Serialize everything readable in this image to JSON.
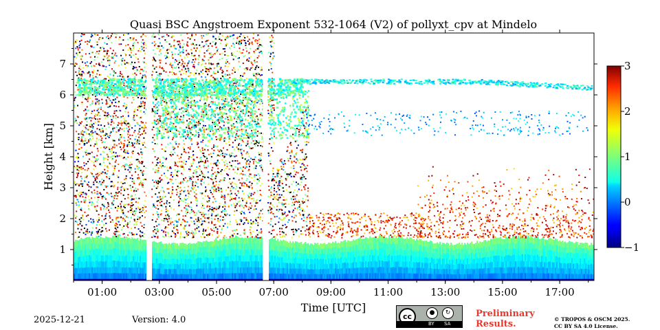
{
  "chart_data": {
    "type": "heatmap",
    "title": "Quasi BSC Angstroem Exponent 532-1064 (V2) of pollyxt_cpv at Mindelo",
    "xlabel": "Time [UTC]",
    "ylabel": "Height [km]",
    "xlim": [
      0.0,
      18.2
    ],
    "ylim": [
      0.0,
      8.0
    ],
    "xticks": [
      1,
      3,
      5,
      7,
      9,
      11,
      13,
      15,
      17
    ],
    "xtick_labels": [
      "01:00",
      "03:00",
      "05:00",
      "07:00",
      "09:00",
      "11:00",
      "13:00",
      "15:00",
      "17:00"
    ],
    "yticks": [
      1,
      2,
      3,
      4,
      5,
      6,
      7
    ],
    "ytick_labels": [
      "1",
      "2",
      "3",
      "4",
      "5",
      "6",
      "7"
    ],
    "colorbar": {
      "min": -1,
      "max": 3,
      "ticks": [
        -1,
        0,
        1,
        2,
        3
      ],
      "tick_labels": [
        "−1",
        "0",
        "1",
        "2",
        "3"
      ],
      "colormap": "jet"
    },
    "data_gaps_hours": [
      [
        2.55,
        2.72
      ],
      [
        6.62,
        6.78
      ]
    ],
    "features": [
      {
        "name": "boundary layer",
        "time_range": [
          0.0,
          18.2
        ],
        "height_range_km": [
          0.05,
          1.4
        ],
        "value": 0.5
      },
      {
        "name": "elevated layer",
        "time_range": [
          0.0,
          18.2
        ],
        "height_range_km": [
          6.0,
          6.6
        ],
        "value": 0.6
      },
      {
        "name": "mid layer",
        "time_range": [
          2.8,
          8.4
        ],
        "height_range_km": [
          4.6,
          6.2
        ],
        "value": 0.8
      },
      {
        "name": "noise region",
        "time_range": [
          0.0,
          8.2
        ],
        "height_range_km": [
          1.4,
          8.0
        ],
        "value": "random"
      }
    ]
  },
  "footer": {
    "date": "2025-12-21",
    "version": "Version: 4.0",
    "preliminary_line1": "Preliminary",
    "preliminary_line2": "Results.",
    "copyright_line1": "© TROPOS & OSCM 2025.",
    "copyright_line2": "CC BY SA 4.0 License.",
    "license_badge": {
      "label": "cc",
      "by": "BY",
      "sa": "SA"
    }
  },
  "colors": {
    "preliminary": "#e8372c",
    "background": "#ffffff"
  }
}
